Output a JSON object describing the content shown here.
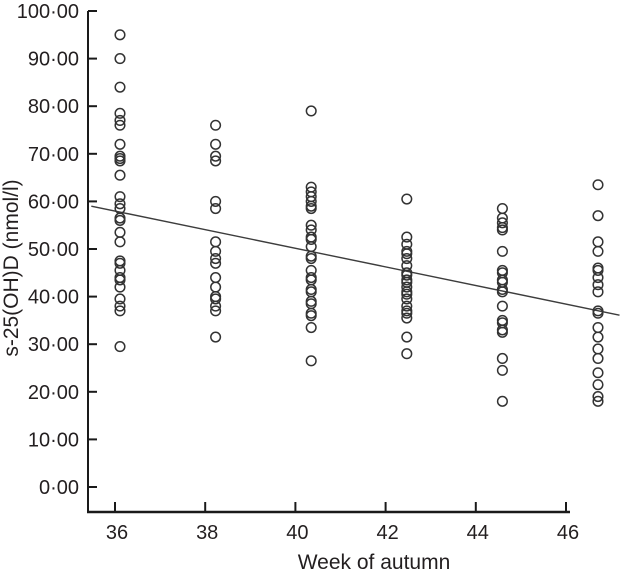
{
  "chart_data": {
    "type": "scatter",
    "title": "",
    "xlabel": "Week of autumn",
    "ylabel": "s-25(OH)D (nmol/l)",
    "marker": "open-circle",
    "grid": false,
    "legend": "none",
    "xlim": [
      35.4,
      46.6
    ],
    "ylim": [
      -5,
      100
    ],
    "x_ticks": [
      {
        "value": 36,
        "label": "36"
      },
      {
        "value": 38,
        "label": "38"
      },
      {
        "value": 40,
        "label": "40"
      },
      {
        "value": 42,
        "label": "42"
      },
      {
        "value": 44,
        "label": "44"
      },
      {
        "value": 46,
        "label": "46"
      }
    ],
    "y_ticks": [
      {
        "value": 0,
        "label": "0·00"
      },
      {
        "value": 10,
        "label": "10·00"
      },
      {
        "value": 20,
        "label": "20·00"
      },
      {
        "value": 30,
        "label": "30·00"
      },
      {
        "value": 40,
        "label": "40·00"
      },
      {
        "value": 50,
        "label": "50·00"
      },
      {
        "value": 60,
        "label": "60·00"
      },
      {
        "value": 70,
        "label": "70·00"
      },
      {
        "value": 80,
        "label": "80·00"
      },
      {
        "value": 90,
        "label": "90·00"
      },
      {
        "value": 100,
        "label": "100·00"
      }
    ],
    "series": [
      {
        "week": 36,
        "values": [
          95,
          90,
          84,
          78.5,
          77,
          76,
          72,
          69.5,
          69,
          68.5,
          65.5,
          61,
          59.5,
          58.5,
          56.5,
          56,
          53.5,
          51.5,
          47.5,
          47,
          45.5,
          44,
          43.5,
          42,
          39.5,
          38,
          37,
          29.5
        ]
      },
      {
        "week": 38,
        "values": [
          76,
          72,
          69.5,
          68.5,
          60,
          58.5,
          51.5,
          49.5,
          48,
          47,
          44,
          42,
          40,
          39.5,
          38,
          37,
          31.5
        ]
      },
      {
        "week": 40,
        "values": [
          79,
          63,
          62,
          61,
          60,
          59,
          58.5,
          55,
          54,
          52.5,
          52,
          50.5,
          48.5,
          48,
          45.5,
          44,
          43.5,
          41.5,
          41,
          39,
          38.5,
          36.5,
          36,
          33.5,
          26.5
        ]
      },
      {
        "week": 42,
        "values": [
          60.5,
          52.5,
          51,
          49.5,
          49,
          48,
          46.5,
          45,
          44.5,
          43.5,
          43,
          42,
          41,
          40.5,
          39.5,
          38,
          37,
          36.5,
          35.5,
          31.5,
          28
        ]
      },
      {
        "week": 44,
        "values": [
          58.5,
          56.5,
          55.5,
          54.5,
          54,
          49.5,
          45.5,
          45,
          43.5,
          43,
          41.5,
          41,
          38,
          35,
          34.5,
          33,
          32.5,
          27,
          24.5,
          18
        ]
      },
      {
        "week": 46,
        "values": [
          63.5,
          57,
          51.5,
          49.5,
          46,
          45.5,
          44,
          42.5,
          41,
          37,
          36.5,
          33.5,
          31.5,
          29,
          27,
          24,
          21.5,
          19,
          18
        ]
      }
    ],
    "trend_line": {
      "week_start": 35.4,
      "value_start": 59.0,
      "week_end": 46.45,
      "value_end": 36.1
    },
    "colors": {
      "marker": "#333333",
      "trend": "#3d3d3d",
      "axis": "#1a1a1a",
      "text": "#231f20",
      "background": "#ffffff"
    }
  }
}
